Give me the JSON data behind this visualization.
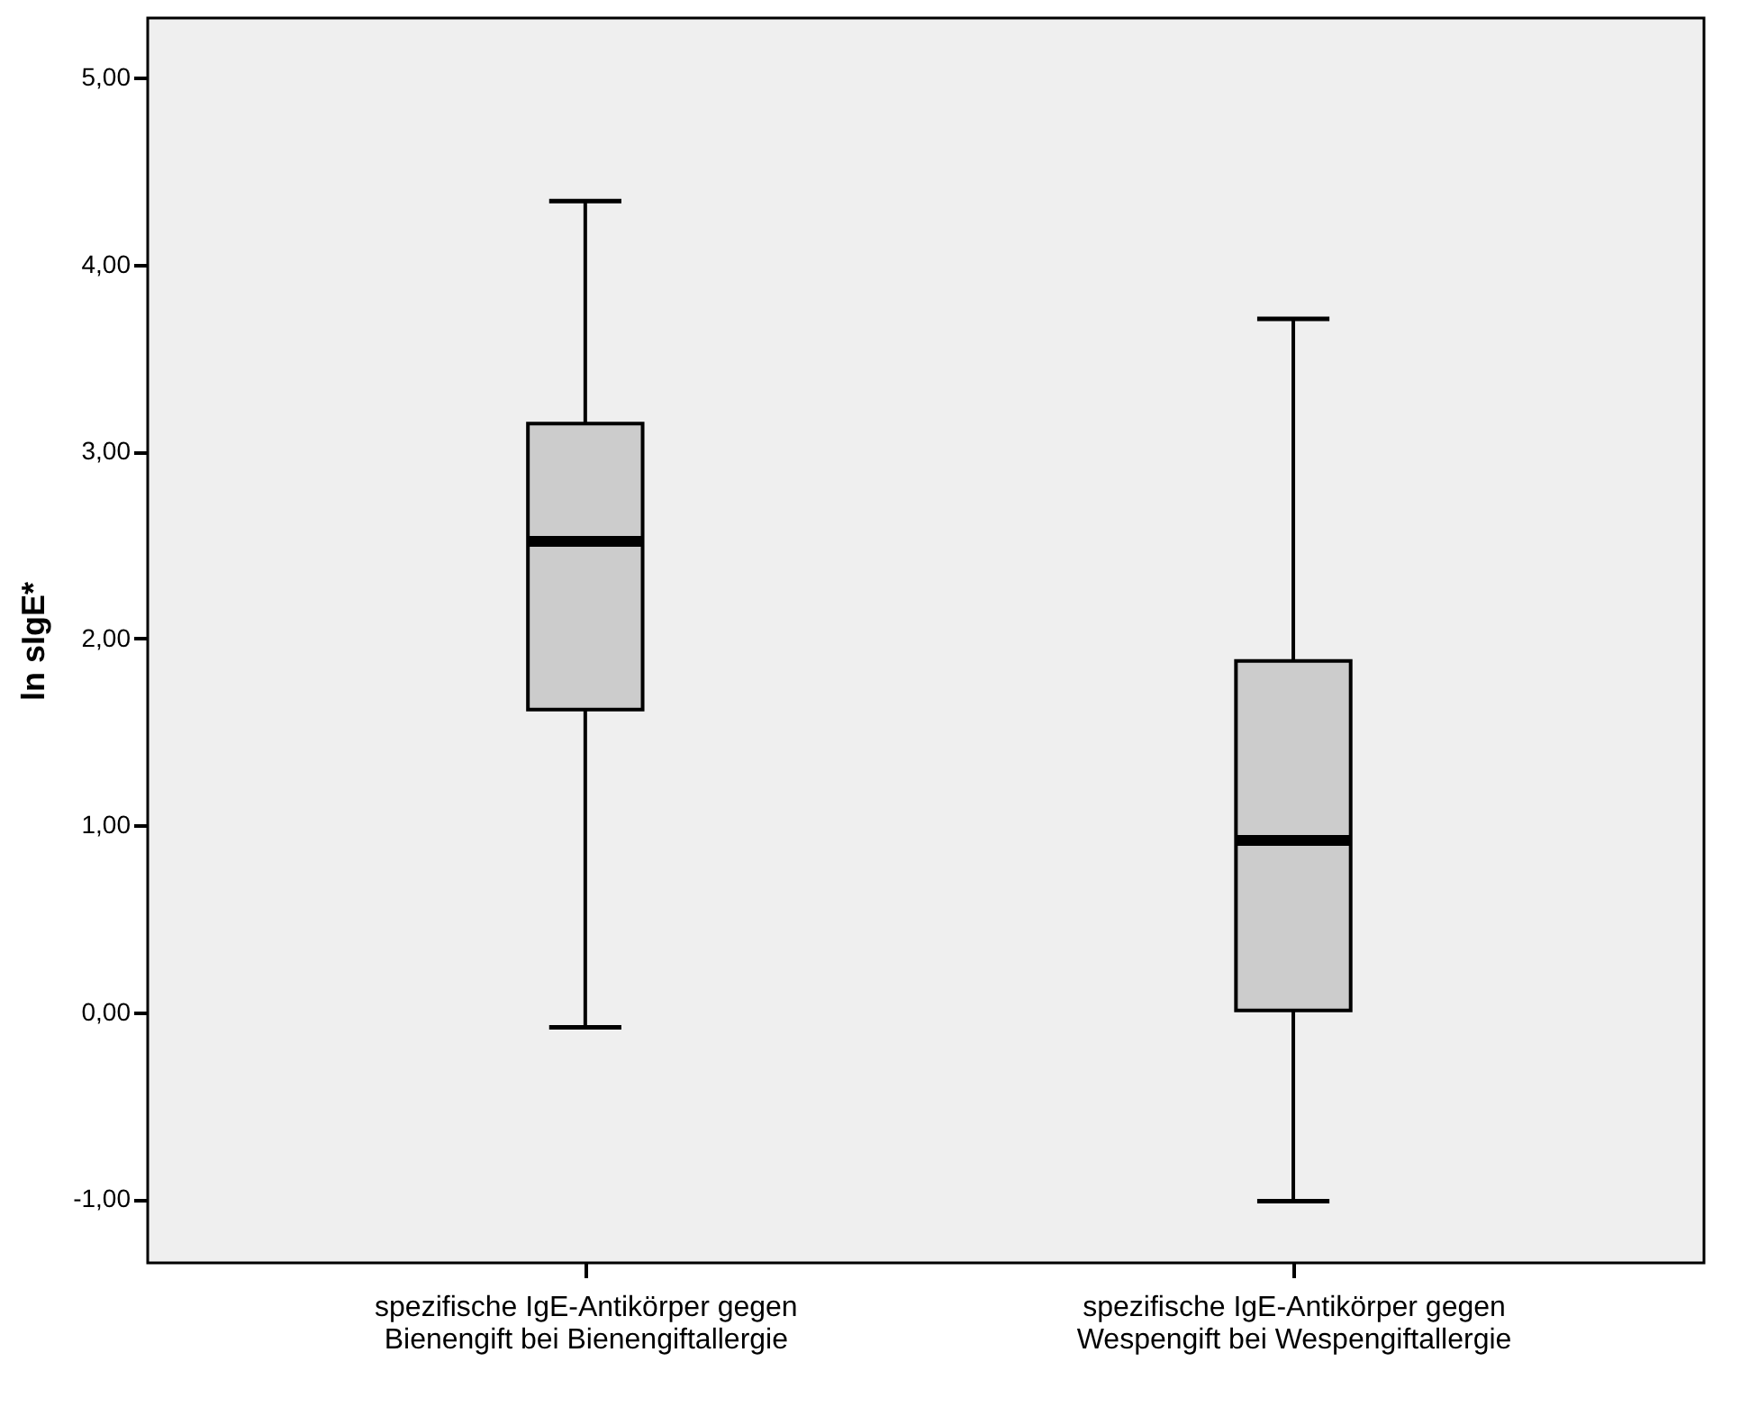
{
  "chart_data": {
    "type": "box",
    "ylabel": "ln sIgE*",
    "categories": [
      "spezifische IgE-Antikörper  gegen\nBienengift bei Bienengiftallergie",
      "spezifische IgE-Antikörper gegen\nWespengift bei Wespengiftallergie"
    ],
    "boxes": [
      {
        "low": -0.08,
        "q1": 1.62,
        "median": 2.52,
        "q3": 3.15,
        "high": 4.34
      },
      {
        "low": -1.01,
        "q1": 0.01,
        "median": 0.92,
        "q3": 1.88,
        "high": 3.71
      }
    ],
    "color": "#cccccc",
    "ylim": [
      -1.34,
      5.32
    ],
    "yticks": [
      {
        "value": -1,
        "label": "-1,00"
      },
      {
        "value": 0,
        "label": "0,00"
      },
      {
        "value": 1,
        "label": "1,00"
      },
      {
        "value": 2,
        "label": "2,00"
      },
      {
        "value": 3,
        "label": "3,00"
      },
      {
        "value": 4,
        "label": "4,00"
      },
      {
        "value": 5,
        "label": "5,00"
      }
    ],
    "grid": false
  }
}
